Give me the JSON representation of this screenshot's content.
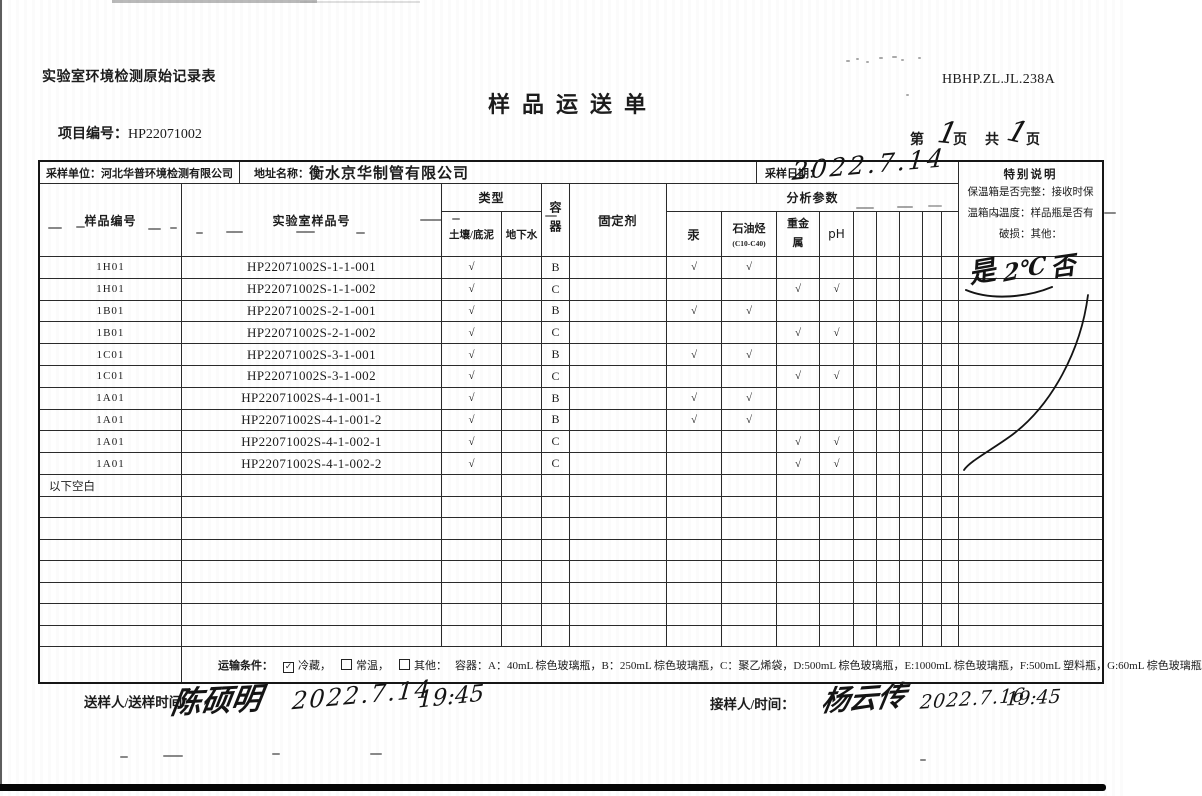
{
  "document": {
    "record_form_label": "实验室环境检测原始记录表",
    "form_code": "HBHP.ZL.JL.238A",
    "title": "样品运送单",
    "project_label": "项目编号：",
    "project_number": "HP22071002",
    "page": {
      "di": "第",
      "ye1": "页",
      "gong": "共",
      "ye2": "页",
      "current": "1",
      "total": "1"
    }
  },
  "info_row": {
    "sampling_unit_label": "采样单位：",
    "sampling_unit": "河北华普环境检测有限公司",
    "address_label": "地址名称：",
    "address": "衡水京华制管有限公司",
    "sampling_date_label": "采样日期：",
    "sampling_date_handwritten": "2022.7.14"
  },
  "columns": {
    "sample_id": "样品编号",
    "lab_sample_id": "实验室样品号",
    "type": "类型",
    "type_soil": "土壤/底泥",
    "type_groundwater": "地下水",
    "container": "容器",
    "fixative": "固定剂",
    "analysis_params": "分析参数",
    "param_mercury": "汞",
    "param_petroleum": "石油烃",
    "param_petroleum_sub": "(C10-C40)",
    "param_heavy_metal": "重金属",
    "param_ph": "pH",
    "special_notes": "特别说明",
    "special_notes_text": "保温箱是否完整：接收时保温箱内温度：样品瓶是否有破损：其他："
  },
  "special_notes_handwritten": {
    "box_intact": "是",
    "temperature": "2℃",
    "bottle_damaged": "否"
  },
  "checkmark": "√",
  "rows": [
    {
      "sample_id": "1H01",
      "lab_sample_id": "HP22071002S-1-1-001",
      "soil": "√",
      "groundwater": "",
      "container": "B",
      "fixative": "",
      "mercury": "√",
      "petroleum": "√",
      "heavy_metal": "",
      "ph": ""
    },
    {
      "sample_id": "1H01",
      "lab_sample_id": "HP22071002S-1-1-002",
      "soil": "√",
      "groundwater": "",
      "container": "C",
      "fixative": "",
      "mercury": "",
      "petroleum": "",
      "heavy_metal": "√",
      "ph": "√"
    },
    {
      "sample_id": "1B01",
      "lab_sample_id": "HP22071002S-2-1-001",
      "soil": "√",
      "groundwater": "",
      "container": "B",
      "fixative": "",
      "mercury": "√",
      "petroleum": "√",
      "heavy_metal": "",
      "ph": ""
    },
    {
      "sample_id": "1B01",
      "lab_sample_id": "HP22071002S-2-1-002",
      "soil": "√",
      "groundwater": "",
      "container": "C",
      "fixative": "",
      "mercury": "",
      "petroleum": "",
      "heavy_metal": "√",
      "ph": "√"
    },
    {
      "sample_id": "1C01",
      "lab_sample_id": "HP22071002S-3-1-001",
      "soil": "√",
      "groundwater": "",
      "container": "B",
      "fixative": "",
      "mercury": "√",
      "petroleum": "√",
      "heavy_metal": "",
      "ph": ""
    },
    {
      "sample_id": "1C01",
      "lab_sample_id": "HP22071002S-3-1-002",
      "soil": "√",
      "groundwater": "",
      "container": "C",
      "fixative": "",
      "mercury": "",
      "petroleum": "",
      "heavy_metal": "√",
      "ph": "√"
    },
    {
      "sample_id": "1A01",
      "lab_sample_id": "HP22071002S-4-1-001-1",
      "soil": "√",
      "groundwater": "",
      "container": "B",
      "fixative": "",
      "mercury": "√",
      "petroleum": "√",
      "heavy_metal": "",
      "ph": ""
    },
    {
      "sample_id": "1A01",
      "lab_sample_id": "HP22071002S-4-1-001-2",
      "soil": "√",
      "groundwater": "",
      "container": "B",
      "fixative": "",
      "mercury": "√",
      "petroleum": "√",
      "heavy_metal": "",
      "ph": ""
    },
    {
      "sample_id": "1A01",
      "lab_sample_id": "HP22071002S-4-1-002-1",
      "soil": "√",
      "groundwater": "",
      "container": "C",
      "fixative": "",
      "mercury": "",
      "petroleum": "",
      "heavy_metal": "√",
      "ph": "√"
    },
    {
      "sample_id": "1A01",
      "lab_sample_id": "HP22071002S-4-1-002-2",
      "soil": "√",
      "groundwater": "",
      "container": "C",
      "fixative": "",
      "mercury": "",
      "petroleum": "",
      "heavy_metal": "√",
      "ph": "√"
    }
  ],
  "below_blank_label": "以下空白",
  "empty_row_count": 7,
  "transport": {
    "label": "运输条件：",
    "options": [
      {
        "label": "冷藏",
        "checked": true
      },
      {
        "label": "常温",
        "checked": false
      },
      {
        "label": "其他：",
        "checked": false
      }
    ],
    "container_legend": "容器：A：40mL 棕色玻璃瓶，B：250mL 棕色玻璃瓶，C：聚乙烯袋，D:500mL 棕色玻璃瓶，E:1000mL 棕色玻璃瓶，F:500mL 塑料瓶，G:60mL 棕色玻璃瓶"
  },
  "footer": {
    "sender_label": "送样人/送样时间：",
    "sender_signature": "陈硕明",
    "sender_date": "2022.7.14",
    "sender_time": "19:45",
    "receiver_label": "接样人/时间：",
    "receiver_signature": "杨云传",
    "receiver_date": "2022.7.16",
    "receiver_time": "19:45"
  }
}
